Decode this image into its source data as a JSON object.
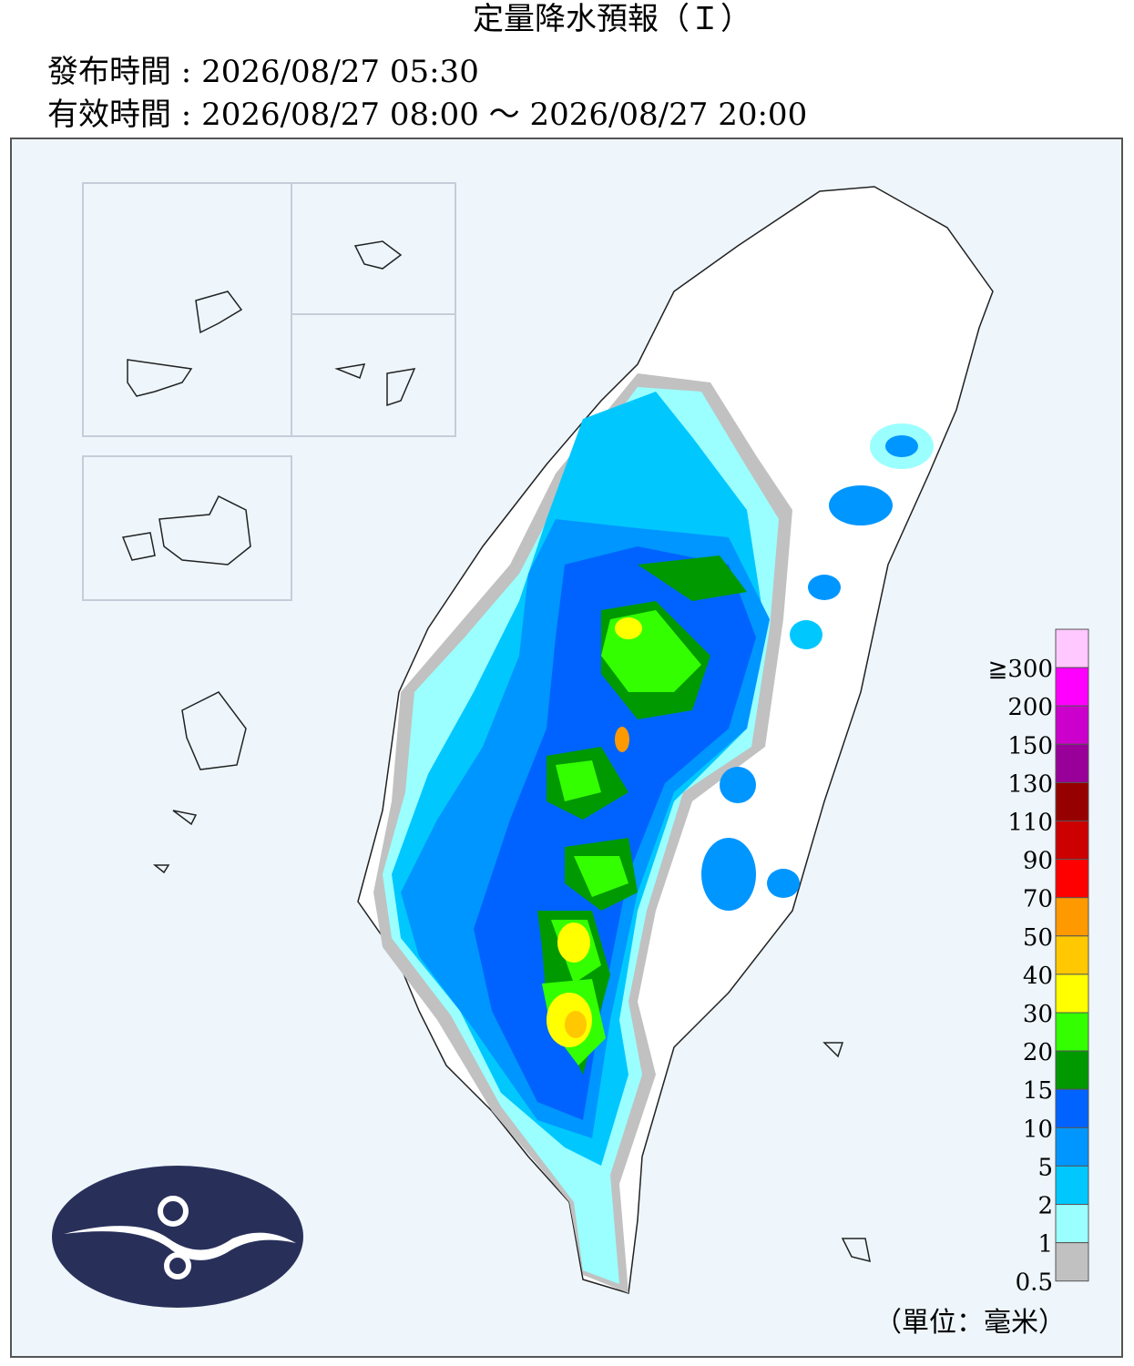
{
  "header": {
    "title": "定量降水預報（Ｉ）",
    "issued": "發布時間 : 2026/08/27 05:30",
    "valid": "有效時間 : 2026/08/27 08:00 ～ 2026/08/27 20:00"
  },
  "legend": {
    "unit": "（單位：毫米）",
    "items": [
      {
        "label": "≧300",
        "color": "#ffc8ff"
      },
      {
        "label": "200",
        "color": "#ff00ff"
      },
      {
        "label": "150",
        "color": "#cc00cc"
      },
      {
        "label": "130",
        "color": "#990099"
      },
      {
        "label": "110",
        "color": "#960000"
      },
      {
        "label": "90",
        "color": "#cc0000"
      },
      {
        "label": "70",
        "color": "#ff0000"
      },
      {
        "label": "50",
        "color": "#ff9900"
      },
      {
        "label": "40",
        "color": "#ffc800"
      },
      {
        "label": "30",
        "color": "#ffff00"
      },
      {
        "label": "20",
        "color": "#33ff00"
      },
      {
        "label": "15",
        "color": "#009900"
      },
      {
        "label": "10",
        "color": "#0063ff"
      },
      {
        "label": "5",
        "color": "#0096ff"
      },
      {
        "label": "2",
        "color": "#00c8ff"
      },
      {
        "label": "1",
        "color": "#9bffff"
      },
      {
        "label": "0.5",
        "color": "#c1c1c1"
      }
    ]
  }
}
